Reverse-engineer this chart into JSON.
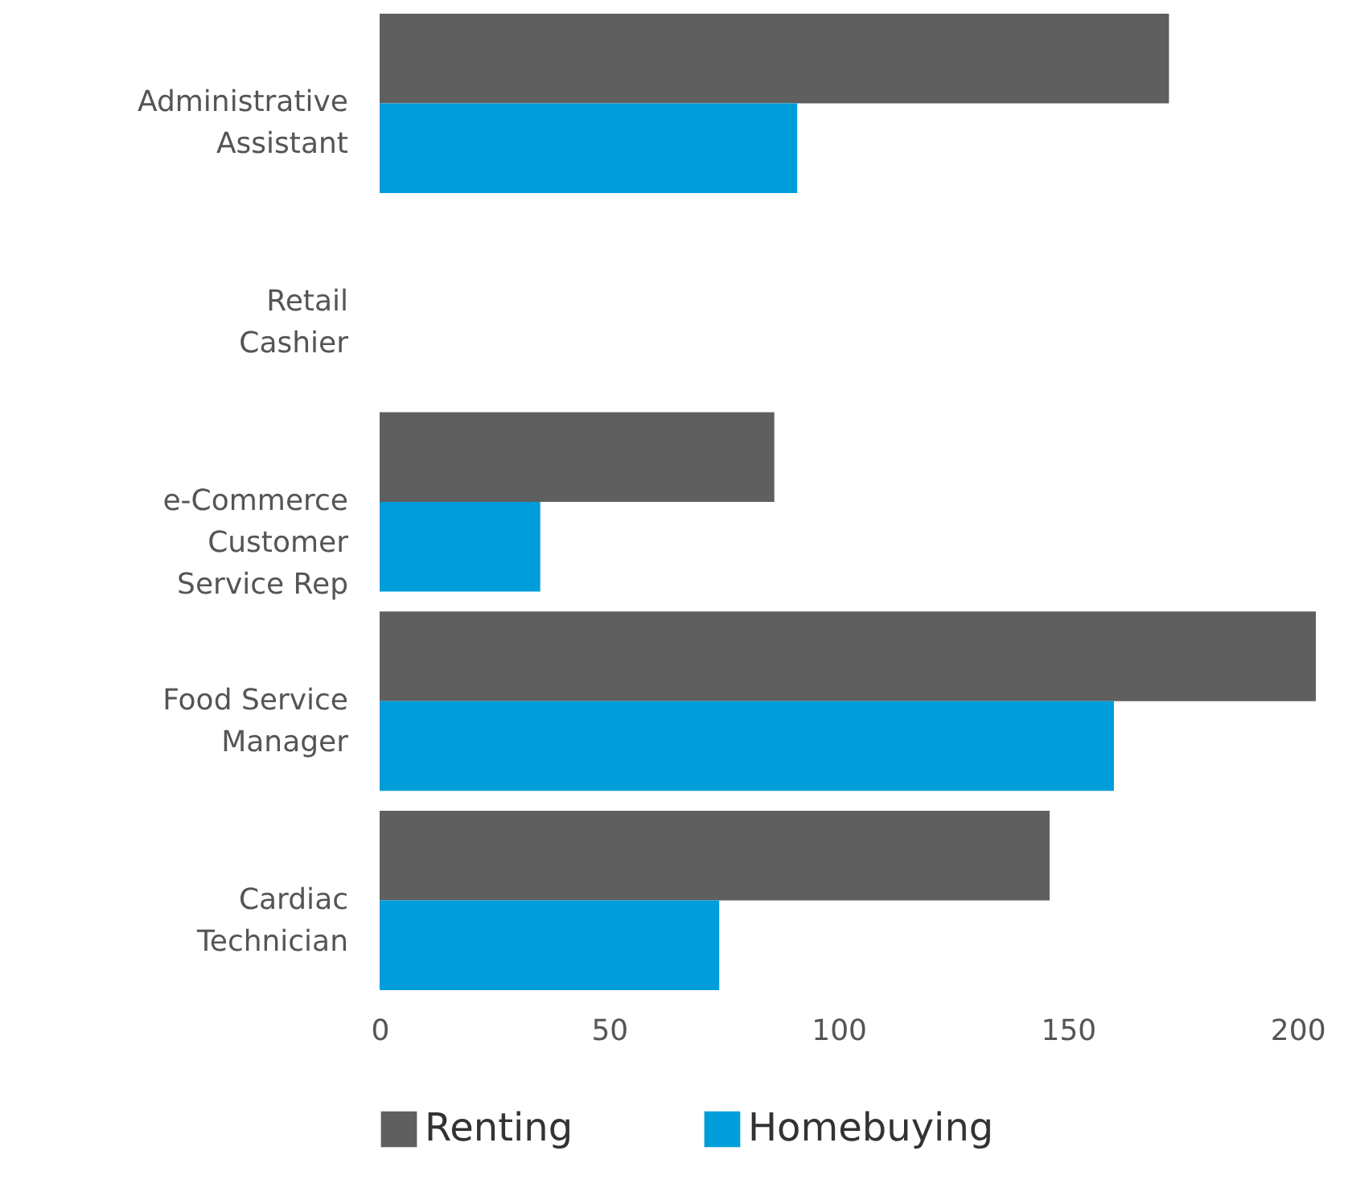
{
  "chart_data": {
    "type": "bar",
    "orientation": "horizontal",
    "categories": [
      "Administrative Assistant",
      "Retail Cashier",
      "e-Commerce Customer Service Rep",
      "Food Service Manager",
      "Cardiac Technician"
    ],
    "series": [
      {
        "name": "Renting",
        "color": "#5f5f5f",
        "values": [
          172,
          null,
          86,
          204,
          146
        ]
      },
      {
        "name": "Homebuying",
        "color": "#009ddb",
        "values": [
          91,
          null,
          35,
          160,
          74
        ]
      }
    ],
    "xlim": [
      0,
      204
    ],
    "xticks": [
      0,
      50,
      100,
      150,
      200
    ],
    "grid": false,
    "legend": "bottom"
  }
}
